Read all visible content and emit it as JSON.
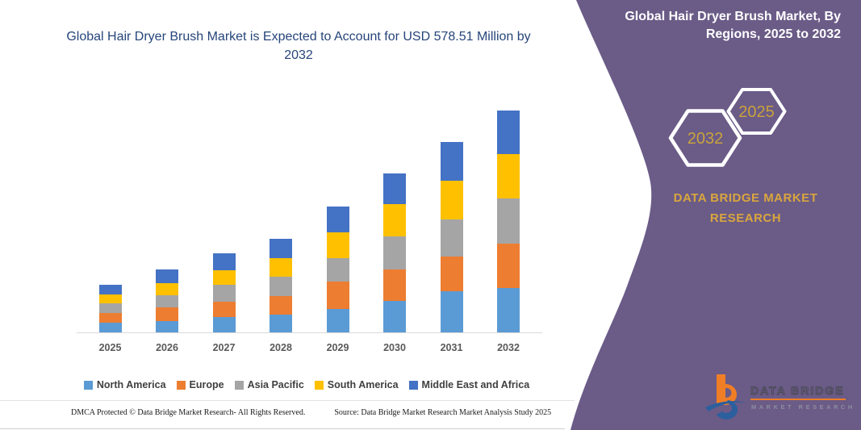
{
  "left_panel": {
    "footer": {
      "dmca": "DMCA Protected © Data Bridge Market Research-  All Rights Reserved.",
      "source": "Source: Data Bridge Market Research  Market Analysis Study 2025"
    }
  },
  "chart_data": {
    "type": "bar",
    "stacked": true,
    "title": "Global Hair Dryer Brush Market is Expected to Account for USD 578.51 Million by 2032",
    "unit": "USD Million",
    "categories": [
      "2025",
      "2026",
      "2027",
      "2028",
      "2029",
      "2030",
      "2031",
      "2032"
    ],
    "series": [
      {
        "name": "North America",
        "color": "#5B9BD5",
        "values": [
          24.5,
          30.0,
          39.0,
          46.5,
          61.5,
          83.0,
          108.0,
          115.5
        ]
      },
      {
        "name": "Europe",
        "color": "#ED7D31",
        "values": [
          27.0,
          34.5,
          41.0,
          49.0,
          70.0,
          82.0,
          90.0,
          115.5
        ]
      },
      {
        "name": "Asia Pacific",
        "color": "#A5A5A5",
        "values": [
          24.0,
          32.0,
          44.0,
          49.0,
          62.5,
          86.0,
          97.0,
          118.5
        ]
      },
      {
        "name": "South America",
        "color": "#FFC000",
        "values": [
          23.5,
          31.5,
          37.5,
          49.0,
          67.5,
          83.0,
          99.5,
          114.0
        ]
      },
      {
        "name": "Middle East and Africa",
        "color": "#4472C4",
        "values": [
          25.0,
          35.5,
          43.5,
          50.0,
          66.5,
          81.0,
          101.5,
          115.0
        ]
      }
    ],
    "totals_estimated": [
      124.0,
      163.5,
      205.0,
      243.5,
      328.0,
      415.0,
      496.0,
      578.5
    ],
    "ylim": [
      0,
      580
    ],
    "grid": false,
    "y_axis_hidden": true,
    "legend_position": "bottom"
  },
  "right_panel": {
    "title": "Global Hair Dryer Brush Market, By Regions, 2025 to 2032",
    "hexagons": [
      {
        "label": "2032"
      },
      {
        "label": "2025"
      }
    ],
    "brand_text": "DATA BRIDGE MARKET RESEARCH",
    "logo": {
      "line1": "DATA BRIDGE",
      "line2": "MARKET RESEARCH"
    },
    "colors": {
      "panel_purple": "#6A5B87",
      "accent_gold": "#D9A63D",
      "hex_year_gold": "#C9A23C",
      "title_white": "#FFFFFF"
    }
  }
}
